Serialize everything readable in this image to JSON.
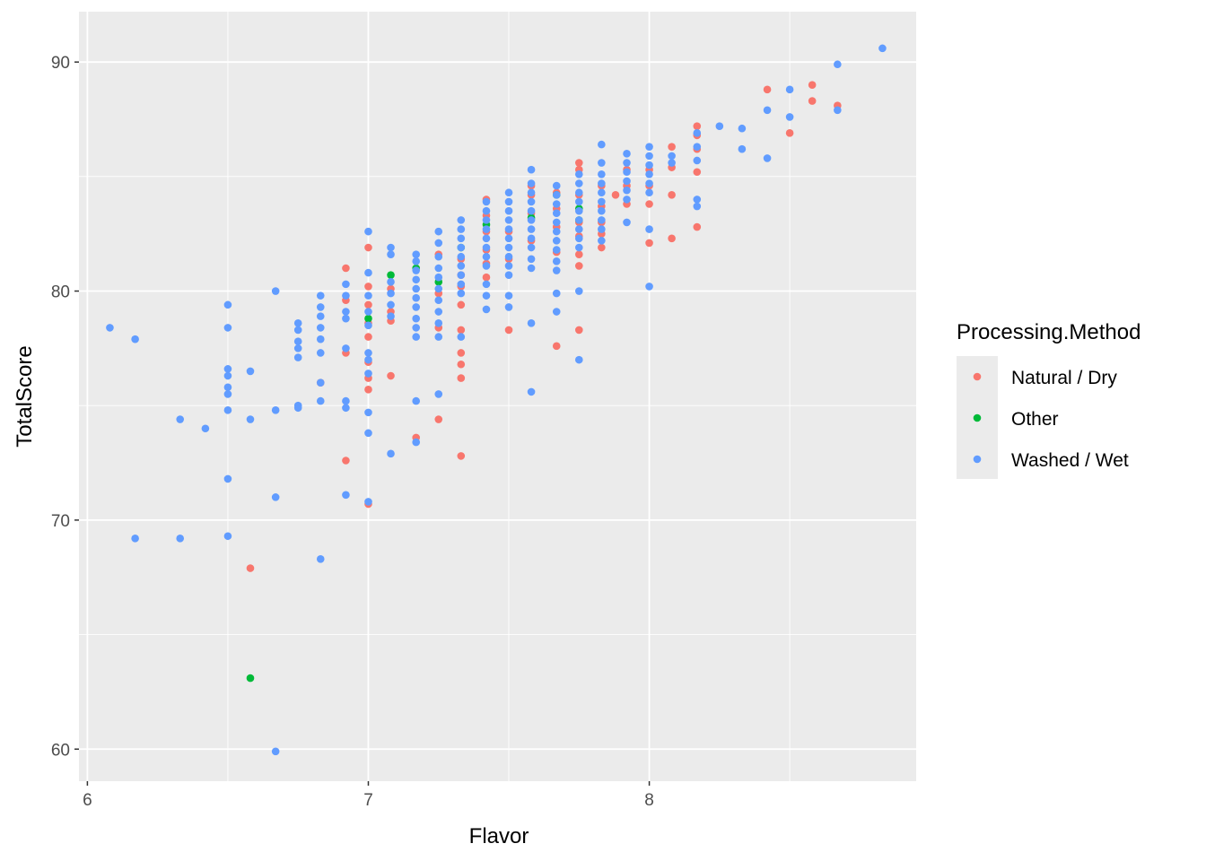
{
  "chart_data": {
    "type": "scatter",
    "xlabel": "Flavor",
    "ylabel": "TotalScore",
    "xlim": [
      5.97,
      8.95
    ],
    "ylim": [
      58.6,
      92.2
    ],
    "x_ticks": [
      6,
      7,
      8
    ],
    "y_ticks": [
      60,
      70,
      80,
      90
    ],
    "x_minor": [
      6.5,
      7.5,
      8.5
    ],
    "y_minor": [
      65,
      75,
      85
    ],
    "grid": true,
    "legend": {
      "title": "Processing.Method",
      "placement": "right"
    },
    "colors": {
      "panel": "#EBEBEB",
      "grid": "#FFFFFF",
      "Natural / Dry": "#F8766D",
      "Other": "#00BA38",
      "Washed / Wet": "#619CFF"
    },
    "series": [
      {
        "name": "Natural / Dry",
        "color": "#F8766D",
        "points": [
          [
            6.58,
            67.9
          ],
          [
            6.83,
            76.0
          ],
          [
            6.92,
            81.0
          ],
          [
            6.92,
            79.6
          ],
          [
            6.92,
            77.3
          ],
          [
            6.92,
            72.6
          ],
          [
            7.0,
            81.9
          ],
          [
            7.0,
            80.2
          ],
          [
            7.0,
            79.4
          ],
          [
            7.0,
            78.6
          ],
          [
            7.0,
            78.0
          ],
          [
            7.0,
            76.9
          ],
          [
            7.0,
            76.2
          ],
          [
            7.0,
            75.7
          ],
          [
            7.0,
            70.7
          ],
          [
            7.08,
            80.1
          ],
          [
            7.08,
            79.1
          ],
          [
            7.08,
            78.7
          ],
          [
            7.08,
            76.3
          ],
          [
            7.17,
            73.6
          ],
          [
            7.25,
            81.6
          ],
          [
            7.25,
            79.9
          ],
          [
            7.25,
            78.4
          ],
          [
            7.25,
            74.4
          ],
          [
            7.33,
            81.4
          ],
          [
            7.33,
            80.7
          ],
          [
            7.33,
            80.2
          ],
          [
            7.33,
            79.4
          ],
          [
            7.33,
            78.3
          ],
          [
            7.33,
            77.3
          ],
          [
            7.33,
            76.8
          ],
          [
            7.33,
            76.2
          ],
          [
            7.33,
            72.8
          ],
          [
            7.42,
            84.0
          ],
          [
            7.42,
            83.3
          ],
          [
            7.42,
            82.6
          ],
          [
            7.42,
            81.8
          ],
          [
            7.42,
            81.2
          ],
          [
            7.42,
            80.6
          ],
          [
            7.5,
            82.6
          ],
          [
            7.5,
            81.4
          ],
          [
            7.5,
            78.3
          ],
          [
            7.58,
            84.6
          ],
          [
            7.58,
            84.2
          ],
          [
            7.58,
            83.4
          ],
          [
            7.58,
            82.2
          ],
          [
            7.67,
            84.3
          ],
          [
            7.67,
            83.6
          ],
          [
            7.67,
            82.8
          ],
          [
            7.67,
            81.7
          ],
          [
            7.67,
            77.6
          ],
          [
            7.75,
            85.6
          ],
          [
            7.75,
            85.3
          ],
          [
            7.75,
            84.2
          ],
          [
            7.75,
            83.0
          ],
          [
            7.75,
            82.4
          ],
          [
            7.75,
            81.6
          ],
          [
            7.75,
            81.1
          ],
          [
            7.75,
            78.3
          ],
          [
            7.83,
            84.6
          ],
          [
            7.83,
            83.7
          ],
          [
            7.83,
            83.0
          ],
          [
            7.83,
            82.5
          ],
          [
            7.83,
            81.9
          ],
          [
            7.88,
            84.2
          ],
          [
            7.92,
            85.3
          ],
          [
            7.92,
            84.6
          ],
          [
            7.92,
            83.8
          ],
          [
            8.0,
            85.3
          ],
          [
            8.0,
            84.6
          ],
          [
            8.0,
            83.8
          ],
          [
            8.0,
            82.1
          ],
          [
            8.08,
            86.3
          ],
          [
            8.08,
            85.4
          ],
          [
            8.08,
            84.2
          ],
          [
            8.08,
            82.3
          ],
          [
            8.17,
            87.2
          ],
          [
            8.17,
            86.8
          ],
          [
            8.17,
            86.2
          ],
          [
            8.17,
            85.2
          ],
          [
            8.17,
            82.8
          ],
          [
            8.42,
            88.8
          ],
          [
            8.5,
            86.9
          ],
          [
            8.58,
            89.0
          ],
          [
            8.58,
            88.3
          ],
          [
            8.67,
            88.1
          ]
        ]
      },
      {
        "name": "Other",
        "color": "#00BA38",
        "points": [
          [
            6.58,
            63.1
          ],
          [
            7.0,
            78.8
          ],
          [
            7.08,
            80.7
          ],
          [
            7.17,
            81.0
          ],
          [
            7.25,
            80.4
          ],
          [
            7.33,
            81.9
          ],
          [
            7.42,
            82.9
          ],
          [
            7.58,
            83.2
          ],
          [
            7.67,
            84.2
          ],
          [
            7.75,
            83.6
          ],
          [
            7.75,
            83.1
          ]
        ]
      },
      {
        "name": "Washed / Wet",
        "color": "#619CFF",
        "points": [
          [
            6.08,
            78.4
          ],
          [
            6.17,
            77.9
          ],
          [
            6.17,
            69.2
          ],
          [
            6.33,
            74.4
          ],
          [
            6.33,
            69.2
          ],
          [
            6.42,
            74.0
          ],
          [
            6.5,
            79.4
          ],
          [
            6.5,
            78.4
          ],
          [
            6.5,
            76.6
          ],
          [
            6.5,
            76.3
          ],
          [
            6.5,
            75.8
          ],
          [
            6.5,
            75.5
          ],
          [
            6.5,
            74.8
          ],
          [
            6.5,
            71.8
          ],
          [
            6.5,
            69.3
          ],
          [
            6.58,
            76.5
          ],
          [
            6.58,
            74.4
          ],
          [
            6.67,
            80.0
          ],
          [
            6.67,
            74.8
          ],
          [
            6.67,
            71.0
          ],
          [
            6.67,
            59.9
          ],
          [
            6.75,
            78.6
          ],
          [
            6.75,
            78.3
          ],
          [
            6.75,
            77.8
          ],
          [
            6.75,
            77.5
          ],
          [
            6.75,
            77.1
          ],
          [
            6.75,
            75.0
          ],
          [
            6.75,
            74.9
          ],
          [
            6.83,
            79.8
          ],
          [
            6.83,
            79.3
          ],
          [
            6.83,
            78.9
          ],
          [
            6.83,
            78.4
          ],
          [
            6.83,
            77.9
          ],
          [
            6.83,
            77.3
          ],
          [
            6.83,
            76.0
          ],
          [
            6.83,
            75.2
          ],
          [
            6.83,
            68.3
          ],
          [
            6.92,
            80.3
          ],
          [
            6.92,
            79.8
          ],
          [
            6.92,
            79.1
          ],
          [
            6.92,
            78.8
          ],
          [
            6.92,
            77.5
          ],
          [
            6.92,
            75.2
          ],
          [
            6.92,
            74.9
          ],
          [
            6.92,
            71.1
          ],
          [
            7.0,
            82.6
          ],
          [
            7.0,
            80.8
          ],
          [
            7.0,
            79.8
          ],
          [
            7.0,
            79.1
          ],
          [
            7.0,
            78.5
          ],
          [
            7.0,
            77.3
          ],
          [
            7.0,
            77.0
          ],
          [
            7.0,
            76.4
          ],
          [
            7.0,
            74.7
          ],
          [
            7.0,
            73.8
          ],
          [
            7.0,
            70.8
          ],
          [
            7.08,
            81.9
          ],
          [
            7.08,
            81.6
          ],
          [
            7.08,
            80.4
          ],
          [
            7.08,
            79.9
          ],
          [
            7.08,
            79.4
          ],
          [
            7.08,
            78.9
          ],
          [
            7.08,
            72.9
          ],
          [
            7.17,
            81.6
          ],
          [
            7.17,
            81.3
          ],
          [
            7.17,
            80.9
          ],
          [
            7.17,
            80.5
          ],
          [
            7.17,
            80.1
          ],
          [
            7.17,
            79.7
          ],
          [
            7.17,
            79.3
          ],
          [
            7.17,
            78.8
          ],
          [
            7.17,
            78.4
          ],
          [
            7.17,
            78.0
          ],
          [
            7.17,
            75.2
          ],
          [
            7.17,
            73.4
          ],
          [
            7.25,
            82.6
          ],
          [
            7.25,
            82.1
          ],
          [
            7.25,
            81.5
          ],
          [
            7.25,
            81.0
          ],
          [
            7.25,
            80.6
          ],
          [
            7.25,
            80.1
          ],
          [
            7.25,
            79.6
          ],
          [
            7.25,
            79.1
          ],
          [
            7.25,
            78.6
          ],
          [
            7.25,
            78.0
          ],
          [
            7.25,
            75.5
          ],
          [
            7.33,
            83.1
          ],
          [
            7.33,
            82.7
          ],
          [
            7.33,
            82.3
          ],
          [
            7.33,
            81.9
          ],
          [
            7.33,
            81.5
          ],
          [
            7.33,
            81.1
          ],
          [
            7.33,
            80.7
          ],
          [
            7.33,
            80.3
          ],
          [
            7.33,
            79.9
          ],
          [
            7.33,
            78.0
          ],
          [
            7.42,
            83.9
          ],
          [
            7.42,
            83.5
          ],
          [
            7.42,
            83.1
          ],
          [
            7.42,
            82.7
          ],
          [
            7.42,
            82.3
          ],
          [
            7.42,
            81.9
          ],
          [
            7.42,
            81.5
          ],
          [
            7.42,
            81.1
          ],
          [
            7.42,
            80.3
          ],
          [
            7.42,
            79.8
          ],
          [
            7.42,
            79.2
          ],
          [
            7.5,
            84.3
          ],
          [
            7.5,
            83.9
          ],
          [
            7.5,
            83.5
          ],
          [
            7.5,
            83.1
          ],
          [
            7.5,
            82.7
          ],
          [
            7.5,
            82.3
          ],
          [
            7.5,
            81.9
          ],
          [
            7.5,
            81.5
          ],
          [
            7.5,
            81.1
          ],
          [
            7.5,
            80.7
          ],
          [
            7.5,
            79.8
          ],
          [
            7.5,
            79.3
          ],
          [
            7.58,
            85.3
          ],
          [
            7.58,
            84.7
          ],
          [
            7.58,
            84.3
          ],
          [
            7.58,
            83.9
          ],
          [
            7.58,
            83.5
          ],
          [
            7.58,
            83.1
          ],
          [
            7.58,
            82.7
          ],
          [
            7.58,
            82.3
          ],
          [
            7.58,
            81.9
          ],
          [
            7.58,
            81.4
          ],
          [
            7.58,
            81.0
          ],
          [
            7.58,
            78.6
          ],
          [
            7.58,
            75.6
          ],
          [
            7.67,
            84.6
          ],
          [
            7.67,
            84.2
          ],
          [
            7.67,
            83.8
          ],
          [
            7.67,
            83.4
          ],
          [
            7.67,
            83.0
          ],
          [
            7.67,
            82.6
          ],
          [
            7.67,
            82.2
          ],
          [
            7.67,
            81.8
          ],
          [
            7.67,
            81.3
          ],
          [
            7.67,
            80.9
          ],
          [
            7.67,
            79.9
          ],
          [
            7.67,
            79.1
          ],
          [
            7.75,
            85.1
          ],
          [
            7.75,
            84.7
          ],
          [
            7.75,
            84.3
          ],
          [
            7.75,
            83.9
          ],
          [
            7.75,
            83.5
          ],
          [
            7.75,
            83.1
          ],
          [
            7.75,
            82.7
          ],
          [
            7.75,
            82.3
          ],
          [
            7.75,
            81.9
          ],
          [
            7.75,
            80.0
          ],
          [
            7.75,
            77.0
          ],
          [
            7.83,
            86.4
          ],
          [
            7.83,
            85.6
          ],
          [
            7.83,
            85.1
          ],
          [
            7.83,
            84.7
          ],
          [
            7.83,
            84.3
          ],
          [
            7.83,
            83.9
          ],
          [
            7.83,
            83.5
          ],
          [
            7.83,
            83.1
          ],
          [
            7.83,
            82.7
          ],
          [
            7.83,
            82.2
          ],
          [
            7.92,
            86.0
          ],
          [
            7.92,
            85.6
          ],
          [
            7.92,
            85.2
          ],
          [
            7.92,
            84.8
          ],
          [
            7.92,
            84.4
          ],
          [
            7.92,
            84.0
          ],
          [
            7.92,
            83.0
          ],
          [
            8.0,
            86.3
          ],
          [
            8.0,
            85.9
          ],
          [
            8.0,
            85.5
          ],
          [
            8.0,
            85.1
          ],
          [
            8.0,
            84.7
          ],
          [
            8.0,
            84.3
          ],
          [
            8.0,
            82.7
          ],
          [
            8.0,
            80.2
          ],
          [
            8.08,
            85.9
          ],
          [
            8.08,
            85.6
          ],
          [
            8.17,
            86.9
          ],
          [
            8.17,
            86.3
          ],
          [
            8.17,
            85.7
          ],
          [
            8.17,
            84.0
          ],
          [
            8.17,
            83.7
          ],
          [
            8.25,
            87.2
          ],
          [
            8.33,
            87.1
          ],
          [
            8.33,
            86.2
          ],
          [
            8.42,
            87.9
          ],
          [
            8.42,
            85.8
          ],
          [
            8.5,
            88.8
          ],
          [
            8.5,
            87.6
          ],
          [
            8.67,
            89.9
          ],
          [
            8.67,
            87.9
          ],
          [
            8.83,
            90.6
          ]
        ]
      }
    ]
  }
}
